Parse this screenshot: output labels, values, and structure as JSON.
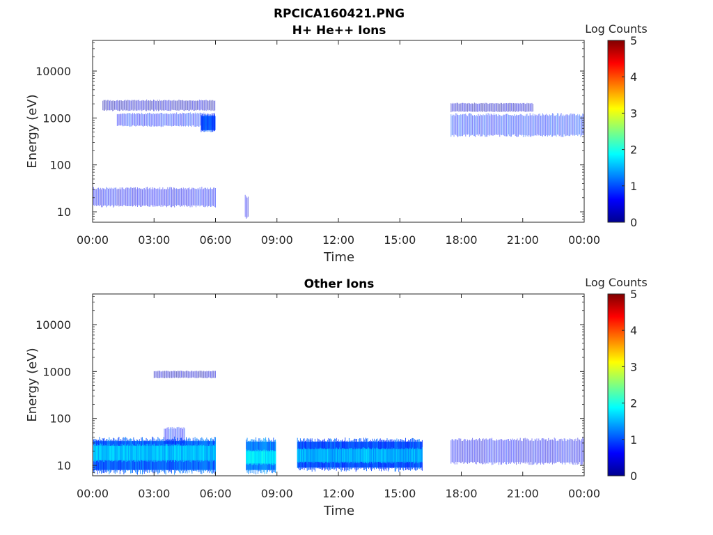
{
  "figure": {
    "file_title": "RPCICA160421.PNG"
  },
  "colorscale": [
    "#00008f",
    "#0000ff",
    "#0080ff",
    "#00ffff",
    "#80ff80",
    "#ffff00",
    "#ff8000",
    "#ff0000",
    "#800000"
  ],
  "chart_data": [
    {
      "type": "heatmap",
      "title": "H+ He++ Ions",
      "xlabel": "Time",
      "ylabel": "Energy (eV)",
      "x_ticks": [
        "00:00",
        "03:00",
        "06:00",
        "09:00",
        "12:00",
        "15:00",
        "18:00",
        "21:00",
        "00:00"
      ],
      "x_range_hours": [
        0,
        24
      ],
      "y_scale": "log",
      "y_ticks": [
        "10",
        "100",
        "1000",
        "10000"
      ],
      "y_range_eV": [
        6,
        45000
      ],
      "colorbar": {
        "label": "Log Counts",
        "range": [
          0,
          5
        ],
        "ticks": [
          "0",
          "1",
          "2",
          "3",
          "4",
          "5"
        ]
      },
      "patches": [
        {
          "t": [
            0.05,
            6.0
          ],
          "e": [
            14,
            30
          ],
          "v": 0.6
        },
        {
          "t": [
            1.2,
            6.0
          ],
          "e": [
            700,
            1200
          ],
          "v": 0.75
        },
        {
          "t": [
            0.5,
            6.0
          ],
          "e": [
            1500,
            2300
          ],
          "v": 0.3
        },
        {
          "t": [
            5.3,
            6.0
          ],
          "e": [
            550,
            1100
          ],
          "v": 1.0
        },
        {
          "t": [
            7.45,
            7.6
          ],
          "e": [
            8,
            20
          ],
          "v": 0.5
        },
        {
          "t": [
            17.5,
            24.0
          ],
          "e": [
            450,
            1100
          ],
          "v": 0.8
        },
        {
          "t": [
            17.5,
            21.5
          ],
          "e": [
            1400,
            2000
          ],
          "v": 0.3
        }
      ]
    },
    {
      "type": "heatmap",
      "title": "Other Ions",
      "xlabel": "Time",
      "ylabel": "Energy (eV)",
      "x_ticks": [
        "00:00",
        "03:00",
        "06:00",
        "09:00",
        "12:00",
        "15:00",
        "18:00",
        "21:00",
        "00:00"
      ],
      "x_range_hours": [
        0,
        24
      ],
      "y_scale": "log",
      "y_ticks": [
        "10",
        "100",
        "1000",
        "10000"
      ],
      "y_range_eV": [
        6,
        45000
      ],
      "colorbar": {
        "label": "Log Counts",
        "range": [
          0,
          5
        ],
        "ticks": [
          "0",
          "1",
          "2",
          "3",
          "4",
          "5"
        ]
      },
      "patches": [
        {
          "t": [
            0.05,
            6.0
          ],
          "e": [
            8,
            33
          ],
          "v": 1.1
        },
        {
          "t": [
            0.05,
            6.0
          ],
          "e": [
            13,
            26
          ],
          "v": 1.6
        },
        {
          "t": [
            3.5,
            4.5
          ],
          "e": [
            30,
            60
          ],
          "v": 0.8
        },
        {
          "t": [
            3.0,
            6.0
          ],
          "e": [
            750,
            1000
          ],
          "v": 0.3
        },
        {
          "t": [
            7.5,
            8.95
          ],
          "e": [
            8,
            32
          ],
          "v": 1.2
        },
        {
          "t": [
            7.5,
            8.95
          ],
          "e": [
            11,
            20
          ],
          "v": 1.8
        },
        {
          "t": [
            10.0,
            16.1
          ],
          "e": [
            9,
            32
          ],
          "v": 1.0
        },
        {
          "t": [
            10.0,
            16.1
          ],
          "e": [
            12,
            22
          ],
          "v": 1.5
        },
        {
          "t": [
            17.5,
            24.0
          ],
          "e": [
            12,
            33
          ],
          "v": 0.6
        }
      ]
    }
  ]
}
